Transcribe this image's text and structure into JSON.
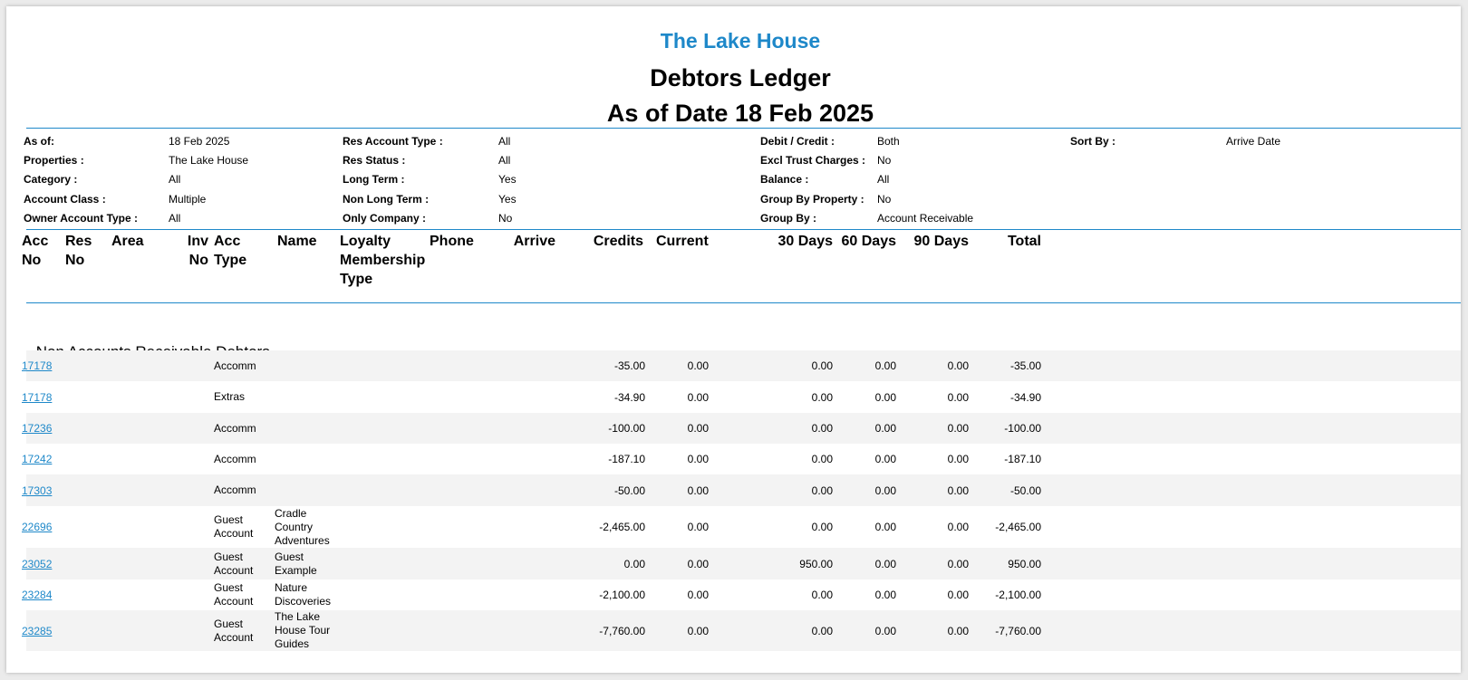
{
  "report": {
    "property_title": "The Lake House",
    "title": "Debtors Ledger",
    "date_line": "As of Date 18 Feb 2025"
  },
  "filters": {
    "col1": [
      {
        "label": "As of:",
        "value": "18 Feb 2025"
      },
      {
        "label": "Properties :",
        "value": "The Lake House"
      },
      {
        "label": "Category :",
        "value": "All"
      },
      {
        "label": "Account Class :",
        "value": "Multiple"
      },
      {
        "label": "Owner Account Type :",
        "value": "All"
      }
    ],
    "col2": [
      {
        "label": "Res Account Type :",
        "value": "All"
      },
      {
        "label": "Res Status :",
        "value": "All"
      },
      {
        "label": "Long Term :",
        "value": "Yes"
      },
      {
        "label": "Non Long Term :",
        "value": "Yes"
      },
      {
        "label": "Only Company :",
        "value": "No"
      }
    ],
    "col3": [
      {
        "label": "Debit / Credit :",
        "value": "Both"
      },
      {
        "label": "Excl Trust Charges :",
        "value": "No"
      },
      {
        "label": "Balance :",
        "value": "All"
      },
      {
        "label": "Group By Property :",
        "value": "No"
      },
      {
        "label": "Group By :",
        "value": "Account Receivable"
      }
    ],
    "col4": [
      {
        "label": "Sort By :",
        "value": "Arrive Date"
      }
    ]
  },
  "columns": {
    "acc_no": "Acc No",
    "res_no": "Res No",
    "area": "Area",
    "inv_no": "Inv No",
    "acc_type": "Acc Type",
    "name": "Name",
    "loyalty": "Loyalty Membership Type",
    "phone": "Phone",
    "arrive": "Arrive",
    "credits": "Credits",
    "current": "Current",
    "d30": "30 Days",
    "d60": "60 Days",
    "d90": "90 Days",
    "total": "Total"
  },
  "section_title": ".Non Accounts Receivable Debtors",
  "rows": [
    {
      "acc": "17178",
      "type": "Accomm",
      "name": "",
      "credits": "-35.00",
      "current": "0.00",
      "d30": "0.00",
      "d60": "0.00",
      "d90": "0.00",
      "total": "-35.00"
    },
    {
      "acc": "17178",
      "type": "Extras",
      "name": "",
      "credits": "-34.90",
      "current": "0.00",
      "d30": "0.00",
      "d60": "0.00",
      "d90": "0.00",
      "total": "-34.90"
    },
    {
      "acc": "17236",
      "type": "Accomm",
      "name": "",
      "credits": "-100.00",
      "current": "0.00",
      "d30": "0.00",
      "d60": "0.00",
      "d90": "0.00",
      "total": "-100.00"
    },
    {
      "acc": "17242",
      "type": "Accomm",
      "name": "",
      "credits": "-187.10",
      "current": "0.00",
      "d30": "0.00",
      "d60": "0.00",
      "d90": "0.00",
      "total": "-187.10"
    },
    {
      "acc": "17303",
      "type": "Accomm",
      "name": "",
      "credits": "-50.00",
      "current": "0.00",
      "d30": "0.00",
      "d60": "0.00",
      "d90": "0.00",
      "total": "-50.00"
    },
    {
      "acc": "22696",
      "type": "Guest Account",
      "name": "Cradle Country Adventures",
      "credits": "-2,465.00",
      "current": "0.00",
      "d30": "0.00",
      "d60": "0.00",
      "d90": "0.00",
      "total": "-2,465.00"
    },
    {
      "acc": "23052",
      "type": "Guest Account",
      "name": "Guest Example",
      "credits": "0.00",
      "current": "0.00",
      "d30": "950.00",
      "d60": "0.00",
      "d90": "0.00",
      "total": "950.00"
    },
    {
      "acc": "23284",
      "type": "Guest Account",
      "name": "Nature Discoveries",
      "credits": "-2,100.00",
      "current": "0.00",
      "d30": "0.00",
      "d60": "0.00",
      "d90": "0.00",
      "total": "-2,100.00"
    },
    {
      "acc": "23285",
      "type": "Guest Account",
      "name": "The Lake House Tour Guides",
      "credits": "-7,760.00",
      "current": "0.00",
      "d30": "0.00",
      "d60": "0.00",
      "d90": "0.00",
      "total": "-7,760.00"
    }
  ]
}
